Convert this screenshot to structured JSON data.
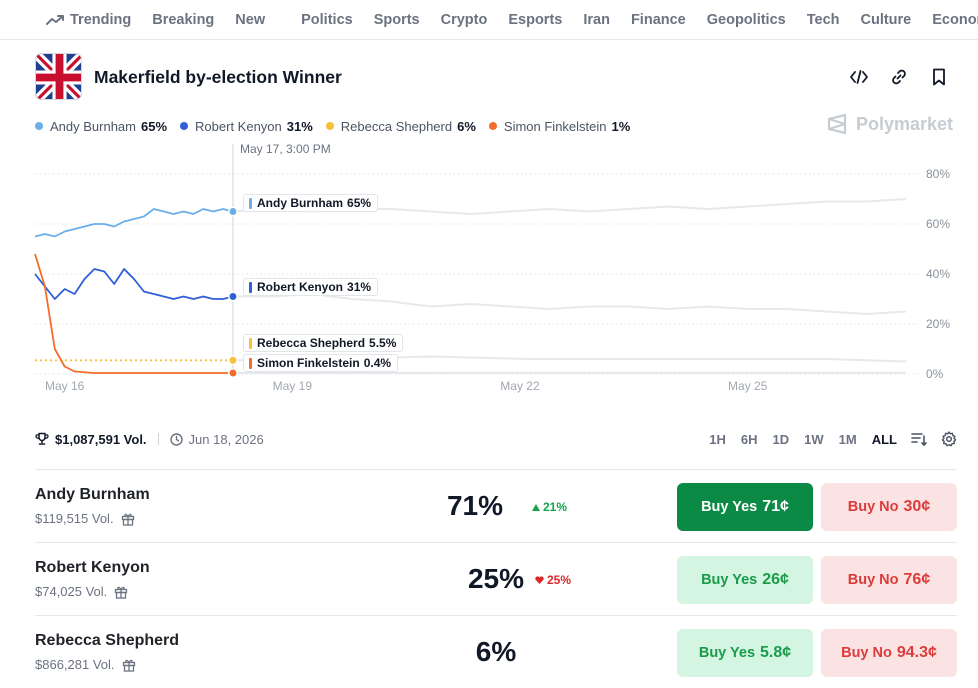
{
  "nav": {
    "trending": "Trending",
    "items": [
      "Breaking",
      "New",
      "Politics",
      "Sports",
      "Crypto",
      "Esports",
      "Iran",
      "Finance",
      "Geopolitics",
      "Tech",
      "Culture",
      "Economy"
    ]
  },
  "market": {
    "title": "Makerfield by-election Winner",
    "icons": [
      "embed-code-icon",
      "link-icon",
      "bookmark-icon"
    ]
  },
  "legend": [
    {
      "name": "Andy Burnham",
      "pct": "65%",
      "color": "#6aaeea"
    },
    {
      "name": "Robert Kenyon",
      "pct": "31%",
      "color": "#2f5ed8"
    },
    {
      "name": "Rebecca Shepherd",
      "pct": "6%",
      "color": "#f5c03a"
    },
    {
      "name": "Simon Finkelstein",
      "pct": "1%",
      "color": "#f26d2a"
    }
  ],
  "watermark": "Polymarket",
  "chart_data": {
    "type": "line",
    "hover_label": "May 17, 3:00 PM",
    "x_ticks": [
      "May 16",
      "May 19",
      "May 22",
      "May 25"
    ],
    "y_ticks": [
      "80%",
      "60%",
      "40%",
      "20%",
      "0%"
    ],
    "ylim": [
      0,
      80
    ],
    "grid": true,
    "tooltips": [
      {
        "name": "Andy Burnham",
        "value": "65%"
      },
      {
        "name": "Robert Kenyon",
        "value": "31%"
      },
      {
        "name": "Rebecca Shepherd",
        "value": "5.5%"
      },
      {
        "name": "Simon Finkelstein",
        "value": "0.4%"
      }
    ],
    "series": [
      {
        "name": "Andy Burnham",
        "color": "#6aaeea",
        "highlighted": [
          [
            0,
            55
          ],
          [
            1,
            56
          ],
          [
            2,
            55
          ],
          [
            3,
            57
          ],
          [
            4,
            58
          ],
          [
            5,
            59
          ],
          [
            6,
            60
          ],
          [
            7,
            60
          ],
          [
            8,
            59
          ],
          [
            9,
            61
          ],
          [
            10,
            62
          ],
          [
            11,
            63
          ],
          [
            12,
            66
          ],
          [
            13,
            65
          ],
          [
            14,
            64
          ],
          [
            15,
            65
          ],
          [
            16,
            64
          ],
          [
            17,
            66
          ],
          [
            18,
            65
          ],
          [
            19,
            66
          ],
          [
            20,
            65
          ]
        ],
        "faded": [
          [
            20,
            65
          ],
          [
            24,
            66
          ],
          [
            28,
            65
          ],
          [
            32,
            66
          ],
          [
            36,
            66
          ],
          [
            40,
            65
          ],
          [
            44,
            64
          ],
          [
            48,
            65
          ],
          [
            52,
            66
          ],
          [
            56,
            65
          ],
          [
            60,
            66
          ],
          [
            64,
            67
          ],
          [
            68,
            66
          ],
          [
            72,
            67
          ],
          [
            76,
            68
          ],
          [
            80,
            69
          ],
          [
            84,
            69
          ],
          [
            88,
            70
          ]
        ]
      },
      {
        "name": "Robert Kenyon",
        "color": "#2f5ed8",
        "highlighted": [
          [
            0,
            40
          ],
          [
            1,
            35
          ],
          [
            2,
            30
          ],
          [
            3,
            34
          ],
          [
            4,
            32
          ],
          [
            5,
            38
          ],
          [
            6,
            42
          ],
          [
            7,
            41
          ],
          [
            8,
            36
          ],
          [
            9,
            42
          ],
          [
            10,
            38
          ],
          [
            11,
            33
          ],
          [
            12,
            32
          ],
          [
            13,
            31
          ],
          [
            14,
            30
          ],
          [
            15,
            31
          ],
          [
            16,
            30
          ],
          [
            17,
            31
          ],
          [
            18,
            30
          ],
          [
            19,
            30
          ],
          [
            20,
            31
          ]
        ],
        "faded": [
          [
            20,
            31
          ],
          [
            24,
            31
          ],
          [
            28,
            32
          ],
          [
            32,
            30
          ],
          [
            36,
            29
          ],
          [
            40,
            27
          ],
          [
            44,
            28
          ],
          [
            48,
            27
          ],
          [
            52,
            26
          ],
          [
            56,
            27
          ],
          [
            60,
            27
          ],
          [
            64,
            26
          ],
          [
            68,
            27
          ],
          [
            72,
            26
          ],
          [
            76,
            26
          ],
          [
            80,
            25
          ],
          [
            84,
            24
          ],
          [
            88,
            25
          ]
        ]
      },
      {
        "name": "Rebecca Shepherd",
        "color": "#f5c03a",
        "highlighted": [
          [
            0,
            5.5
          ],
          [
            20,
            5.5
          ]
        ],
        "faded": [
          [
            20,
            5.5
          ],
          [
            30,
            6
          ],
          [
            40,
            7
          ],
          [
            50,
            6
          ],
          [
            60,
            6
          ],
          [
            70,
            6
          ],
          [
            80,
            6
          ],
          [
            88,
            5
          ]
        ]
      },
      {
        "name": "Simon Finkelstein",
        "color": "#f26d2a",
        "highlighted": [
          [
            0,
            48
          ],
          [
            1,
            35
          ],
          [
            2,
            10
          ],
          [
            3,
            3
          ],
          [
            4,
            1
          ],
          [
            6,
            0.4
          ],
          [
            20,
            0.4
          ]
        ],
        "faded": [
          [
            20,
            0.4
          ],
          [
            88,
            0.5
          ]
        ]
      }
    ]
  },
  "stats": {
    "volume": "$1,087,591 Vol.",
    "end_date": "Jun 18, 2026"
  },
  "ranges": [
    "1H",
    "6H",
    "1D",
    "1W",
    "1M",
    "ALL"
  ],
  "active_range": "ALL",
  "outcomes": [
    {
      "name": "Andy Burnham",
      "volume": "$119,515 Vol.",
      "probability": "71%",
      "change": "21%",
      "direction": "up",
      "yes_label": "Buy Yes",
      "yes_price": "71¢",
      "no_label": "Buy No",
      "no_price": "30¢"
    },
    {
      "name": "Robert Kenyon",
      "volume": "$74,025 Vol.",
      "probability": "25%",
      "change": "25%",
      "direction": "down",
      "yes_label": "Buy Yes",
      "yes_price": "26¢",
      "no_label": "Buy No",
      "no_price": "76¢"
    },
    {
      "name": "Rebecca Shepherd",
      "volume": "$866,281 Vol.",
      "probability": "6%",
      "change": "",
      "direction": "none",
      "yes_label": "Buy Yes",
      "yes_price": "5.8¢",
      "no_label": "Buy No",
      "no_price": "94.3¢"
    }
  ],
  "colors": {
    "yes_strong": "#0b8a45",
    "yes_light": "#d4f5e1",
    "no_light": "#fbe3e3",
    "up": "#16a34a",
    "down": "#dc2626"
  }
}
